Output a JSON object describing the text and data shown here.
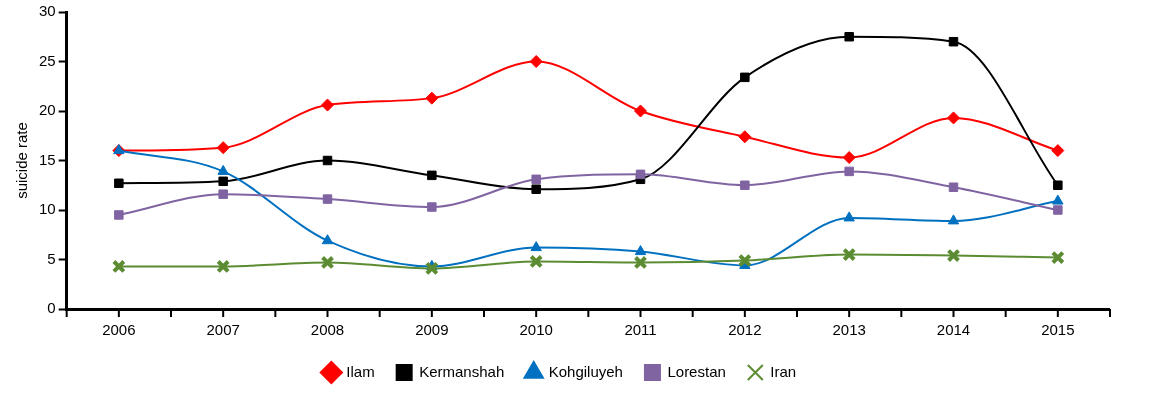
{
  "chart_data": {
    "type": "line",
    "ylabel": "suicide rate",
    "categories": [
      "2006",
      "2007",
      "2008",
      "2009",
      "2010",
      "2011",
      "2012",
      "2013",
      "2014",
      "2015"
    ],
    "series": [
      {
        "name": "Ilam",
        "color": "#ff0000",
        "marker": "diamond",
        "values": [
          16.0,
          16.3,
          20.6,
          21.3,
          25.0,
          20.0,
          17.4,
          15.3,
          19.3,
          16.0
        ]
      },
      {
        "name": "Kermanshah",
        "color": "#000000",
        "marker": "square",
        "values": [
          12.7,
          12.9,
          15.0,
          13.5,
          12.1,
          13.1,
          23.4,
          27.5,
          27.0,
          12.5
        ]
      },
      {
        "name": "Kohgiluyeh",
        "color": "#0070c0",
        "marker": "triangle",
        "values": [
          16.0,
          13.9,
          6.9,
          4.3,
          6.2,
          5.8,
          4.4,
          9.2,
          8.9,
          10.9
        ]
      },
      {
        "name": "Lorestan",
        "color": "#8064a2",
        "marker": "square",
        "values": [
          9.5,
          11.6,
          11.1,
          10.3,
          13.1,
          13.6,
          12.5,
          13.9,
          12.3,
          10.0
        ]
      },
      {
        "name": "Iran",
        "color": "#5b8c32",
        "marker": "cross",
        "values": [
          4.3,
          4.3,
          4.7,
          4.1,
          4.8,
          4.7,
          4.9,
          5.5,
          5.4,
          5.2
        ]
      }
    ],
    "ylim": [
      0,
      30
    ],
    "yticks": [
      0,
      5,
      10,
      15,
      20,
      25,
      30
    ],
    "grid": false,
    "legend": "bottom"
  }
}
